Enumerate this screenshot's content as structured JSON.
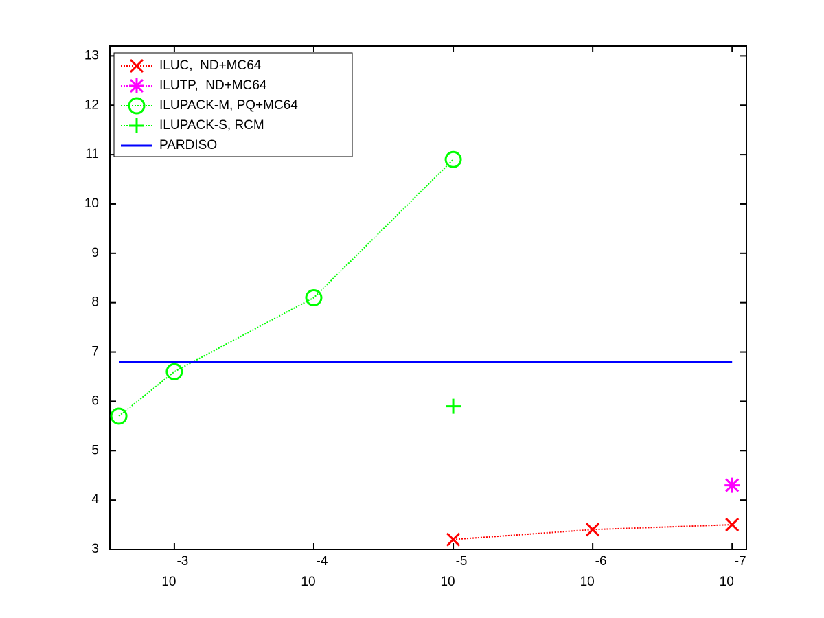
{
  "chart_data": {
    "type": "line",
    "xlim": [
      0.0029,
      7.9e-08
    ],
    "xscale": "log",
    "xticks": [
      {
        "value": 0.001,
        "label": "10",
        "exponent": "-3"
      },
      {
        "value": 0.0001,
        "label": "10",
        "exponent": "-4"
      },
      {
        "value": 1e-05,
        "label": "10",
        "exponent": "-5"
      },
      {
        "value": 1e-06,
        "label": "10",
        "exponent": "-6"
      },
      {
        "value": 1e-07,
        "label": "10",
        "exponent": "-7"
      }
    ],
    "ylim": [
      3,
      13.2
    ],
    "yticks": [
      3,
      4,
      5,
      6,
      7,
      8,
      9,
      10,
      11,
      12,
      13
    ],
    "grid": false,
    "legend": "northwest",
    "series": [
      {
        "name": "ILUC,  ND+MC64",
        "color": "#ff0000",
        "marker": "x",
        "line": "dotted",
        "x": [
          1e-05,
          1e-06,
          1e-07
        ],
        "values": [
          3.2,
          3.4,
          3.5
        ]
      },
      {
        "name": "ILUTP,  ND+MC64",
        "color": "#ff00ff",
        "marker": "star",
        "line": "dotted",
        "x": [
          1e-07
        ],
        "values": [
          4.3
        ]
      },
      {
        "name": "ILUPACK-M, PQ+MC64",
        "color": "#00ff00",
        "marker": "circle",
        "line": "dotted",
        "x": [
          0.0025,
          0.001,
          0.0001,
          1e-05
        ],
        "values": [
          5.7,
          6.6,
          8.1,
          10.9
        ]
      },
      {
        "name": "ILUPACK-S, RCM",
        "color": "#00ff00",
        "marker": "plus",
        "line": "dotted",
        "x": [
          1e-05
        ],
        "values": [
          5.9
        ]
      },
      {
        "name": "PARDISO",
        "color": "#0000ff",
        "marker": "none",
        "line": "solid",
        "x": [
          0.0025,
          1e-07
        ],
        "values": [
          6.8,
          6.8
        ]
      }
    ]
  }
}
